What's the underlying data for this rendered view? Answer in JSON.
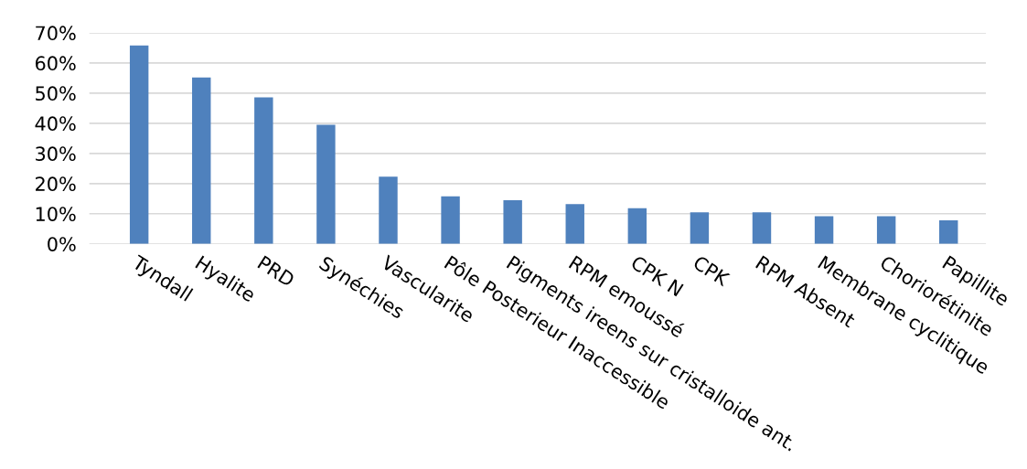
{
  "chart_data": {
    "type": "bar",
    "categories": [
      "Tyndall",
      "Hyalite",
      "PRD",
      "Synéchies",
      "Vascularite",
      "Pôle Posterieur Inaccessible",
      "Pigments ireens sur cristalloide ant.",
      "RPM emoussé",
      "CPK N",
      "CPK",
      "RPM Absent",
      "Membrane cyclitique",
      "Choriorétinite",
      "Papillite"
    ],
    "values": [
      65.8,
      55.2,
      48.6,
      39.5,
      22.3,
      15.8,
      14.5,
      13.2,
      11.8,
      10.5,
      10.5,
      9.2,
      9.2,
      7.8
    ],
    "color": "#4f81bd",
    "ylim": [
      0,
      70
    ],
    "yticks": [
      {
        "value": 0,
        "label": "0%"
      },
      {
        "value": 10,
        "label": "10%"
      },
      {
        "value": 20,
        "label": "20%"
      },
      {
        "value": 30,
        "label": "30%"
      },
      {
        "value": 40,
        "label": "40%"
      },
      {
        "value": 50,
        "label": "50%"
      },
      {
        "value": 60,
        "label": "60%"
      },
      {
        "value": 70,
        "label": "70%"
      }
    ],
    "grid": "y",
    "legend": false
  }
}
